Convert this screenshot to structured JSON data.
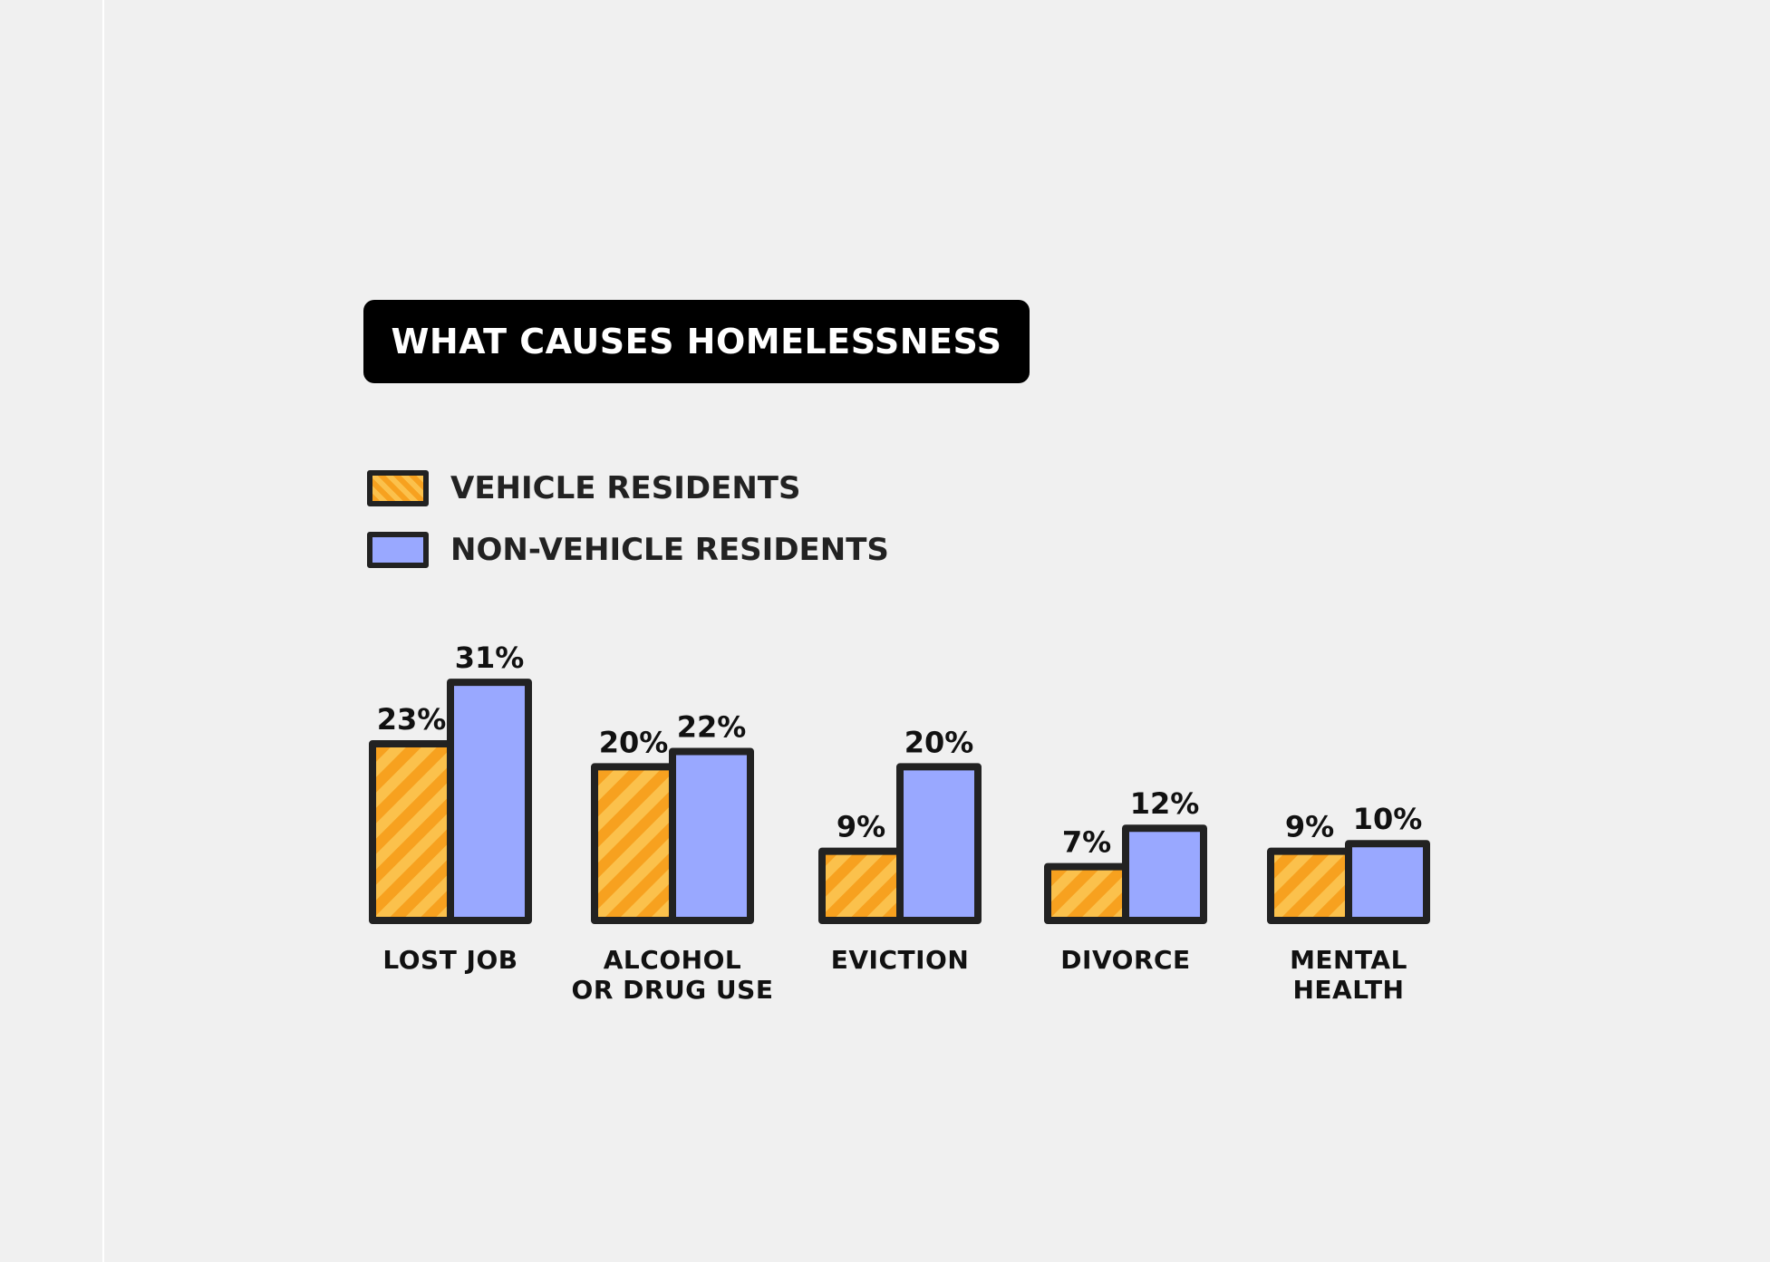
{
  "colors": {
    "background": "#f0f0f0",
    "title_bg": "#000000",
    "title_text": "#ffffff",
    "vehicle_fill": "#f7a11f",
    "vehicle_stripe": "#fbc14c",
    "non_vehicle_fill": "#99a8ff",
    "outline": "#222222"
  },
  "chart_data": {
    "type": "bar",
    "title": "WHAT CAUSES HOMELESSNESS",
    "categories": [
      "LOST JOB",
      "ALCOHOL OR DRUG USE",
      "EVICTION",
      "DIVORCE",
      "MENTAL HEALTH"
    ],
    "category_lines": [
      [
        "LOST JOB"
      ],
      [
        "ALCOHOL",
        "OR DRUG USE"
      ],
      [
        "EVICTION"
      ],
      [
        "DIVORCE"
      ],
      [
        "MENTAL",
        "HEALTH"
      ]
    ],
    "series": [
      {
        "name": "VEHICLE RESIDENTS",
        "values": [
          23,
          20,
          9,
          7,
          9
        ],
        "labels": [
          "23%",
          "20%",
          "9%",
          "7%",
          "9%"
        ],
        "color": "#f7a11f",
        "pattern": "diagonal-stripes"
      },
      {
        "name": "NON-VEHICLE RESIDENTS",
        "values": [
          31,
          22,
          20,
          12,
          10
        ],
        "labels": [
          "31%",
          "22%",
          "20%",
          "12%",
          "10%"
        ],
        "color": "#99a8ff",
        "pattern": "solid"
      }
    ],
    "xlabel": "",
    "ylabel": "",
    "ylim": [
      0,
      31
    ],
    "grid": false,
    "legend_position": "top-left"
  }
}
